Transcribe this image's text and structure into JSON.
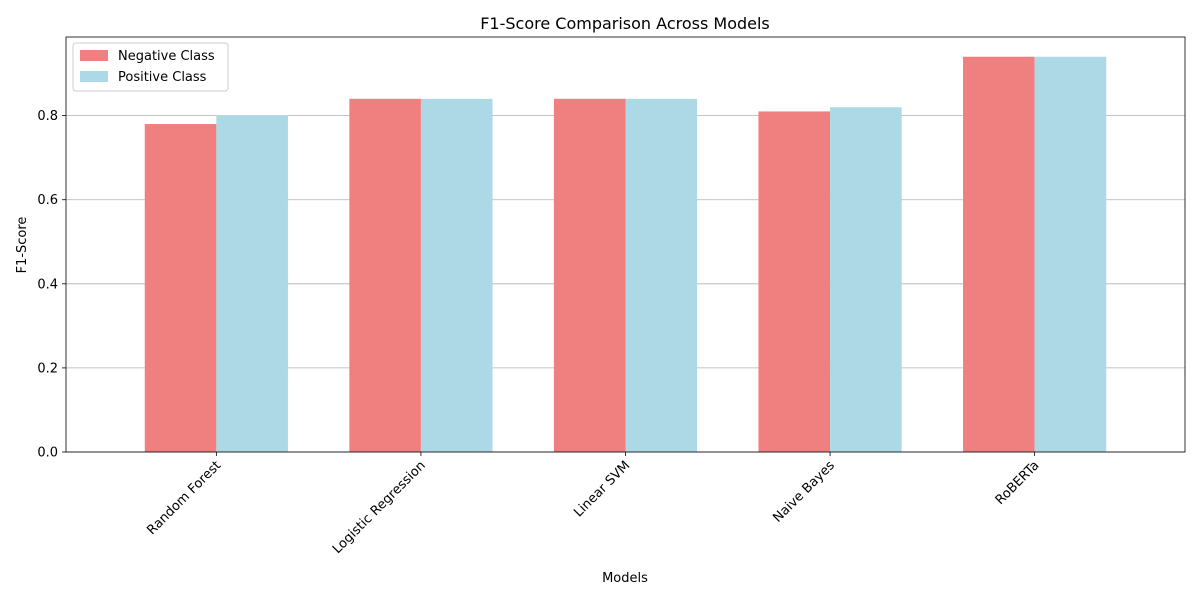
{
  "chart_data": {
    "type": "bar",
    "title": "F1-Score Comparison Across Models",
    "xlabel": "Models",
    "ylabel": "F1-Score",
    "categories": [
      "Random Forest",
      "Logistic Regression",
      "Linear SVM",
      "Naive Bayes",
      "RoBERTa"
    ],
    "series": [
      {
        "name": "Negative Class",
        "color": "#f08080",
        "values": [
          0.78,
          0.84,
          0.84,
          0.81,
          0.94
        ]
      },
      {
        "name": "Positive Class",
        "color": "#add8e6",
        "values": [
          0.8,
          0.84,
          0.84,
          0.82,
          0.94
        ]
      }
    ],
    "ylim": [
      0,
      0.987
    ],
    "yticks": [
      0.0,
      0.2,
      0.4,
      0.6,
      0.8
    ],
    "ytick_labels": [
      "0.0",
      "0.2",
      "0.4",
      "0.6",
      "0.8"
    ],
    "grid": "y",
    "legend_position": "top-left"
  }
}
